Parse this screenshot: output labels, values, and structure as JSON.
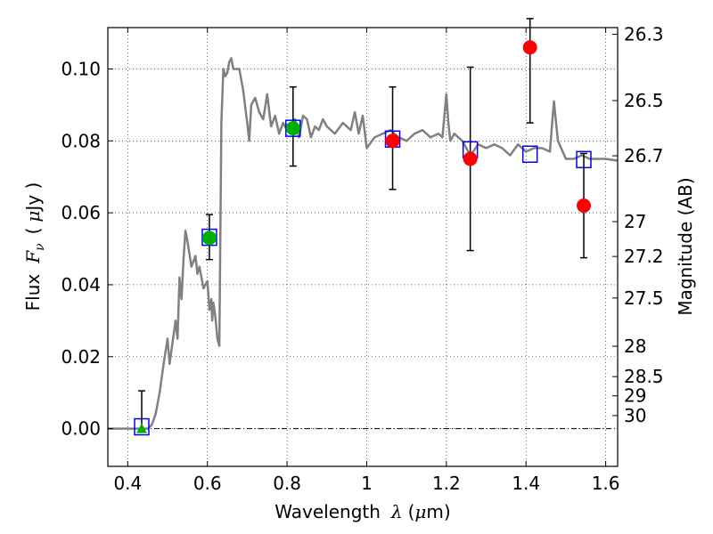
{
  "chart_data": {
    "type": "scatter",
    "xlabel_text": "Wavelength",
    "xlabel_symbol": "λ",
    "xlabel_unit_open": "(",
    "xlabel_unit_mu": "μ",
    "xlabel_unit_rest": "m)",
    "ylabel_text": "Flux",
    "ylabel_symbol": "F",
    "ylabel_sub": "ν",
    "ylabel_unit_open": "(",
    "ylabel_unit_mu": "μ",
    "ylabel_unit_rest": "Jy )",
    "y2label": "Magnitude (AB)",
    "xlim": [
      0.35,
      1.63
    ],
    "ylim": [
      -0.0105,
      0.1115
    ],
    "x_ticks": [
      0.4,
      0.6,
      0.8,
      1.0,
      1.2,
      1.4,
      1.6
    ],
    "x_tick_labels": [
      "0.4",
      "0.6",
      "0.8",
      "1",
      "1.2",
      "1.4",
      "1.6"
    ],
    "y_ticks": [
      0.0,
      0.02,
      0.04,
      0.06,
      0.08,
      0.1
    ],
    "y_tick_labels": [
      "0.00",
      "0.02",
      "0.04",
      "0.06",
      "0.08",
      "0.10"
    ],
    "mag_ticks": [
      "26.3",
      "26.5",
      "26.7",
      "27",
      "27.2",
      "27.5",
      "28",
      "28.5",
      "29",
      "30"
    ],
    "grid": true,
    "colors": {
      "sed": "#808080",
      "model": "#0000ff",
      "red": "#ff0000",
      "green": "#00b000",
      "errorbar": "#000000"
    },
    "sed_spectrum": {
      "x": [
        0.35,
        0.4,
        0.45,
        0.46,
        0.47,
        0.48,
        0.49,
        0.5,
        0.505,
        0.51,
        0.52,
        0.525,
        0.53,
        0.535,
        0.54,
        0.545,
        0.55,
        0.56,
        0.57,
        0.575,
        0.58,
        0.59,
        0.6,
        0.605,
        0.61,
        0.612,
        0.615,
        0.62,
        0.625,
        0.63,
        0.635,
        0.64,
        0.645,
        0.65,
        0.655,
        0.66,
        0.665,
        0.67,
        0.68,
        0.69,
        0.7,
        0.705,
        0.71,
        0.72,
        0.73,
        0.74,
        0.75,
        0.76,
        0.77,
        0.78,
        0.79,
        0.8,
        0.81,
        0.82,
        0.83,
        0.84,
        0.85,
        0.86,
        0.87,
        0.88,
        0.89,
        0.9,
        0.92,
        0.94,
        0.96,
        0.97,
        0.98,
        0.99,
        1.0,
        1.02,
        1.04,
        1.06,
        1.08,
        1.1,
        1.12,
        1.14,
        1.16,
        1.18,
        1.19,
        1.2,
        1.205,
        1.21,
        1.22,
        1.24,
        1.26,
        1.28,
        1.3,
        1.32,
        1.34,
        1.36,
        1.38,
        1.4,
        1.42,
        1.44,
        1.46,
        1.47,
        1.48,
        1.5,
        1.52,
        1.54,
        1.56,
        1.58,
        1.6,
        1.63
      ],
      "y": [
        0.0,
        0.0,
        0.0,
        0.001,
        0.004,
        0.01,
        0.018,
        0.025,
        0.018,
        0.022,
        0.03,
        0.025,
        0.042,
        0.036,
        0.047,
        0.055,
        0.052,
        0.045,
        0.048,
        0.043,
        0.045,
        0.039,
        0.041,
        0.033,
        0.036,
        0.03,
        0.035,
        0.031,
        0.025,
        0.023,
        0.085,
        0.1,
        0.098,
        0.099,
        0.102,
        0.103,
        0.1,
        0.1,
        0.1,
        0.094,
        0.085,
        0.08,
        0.09,
        0.092,
        0.088,
        0.086,
        0.093,
        0.084,
        0.087,
        0.082,
        0.085,
        0.083,
        0.084,
        0.086,
        0.081,
        0.087,
        0.086,
        0.081,
        0.084,
        0.083,
        0.086,
        0.084,
        0.082,
        0.085,
        0.083,
        0.088,
        0.082,
        0.087,
        0.078,
        0.081,
        0.082,
        0.083,
        0.081,
        0.08,
        0.082,
        0.083,
        0.081,
        0.082,
        0.081,
        0.093,
        0.085,
        0.08,
        0.082,
        0.08,
        0.076,
        0.079,
        0.078,
        0.079,
        0.078,
        0.076,
        0.079,
        0.077,
        0.078,
        0.078,
        0.077,
        0.091,
        0.08,
        0.075,
        0.075,
        0.076,
        0.075,
        0.075,
        0.075,
        0.0745
      ]
    },
    "model_points": {
      "x": [
        0.435,
        0.605,
        0.815,
        1.065,
        1.26,
        1.41,
        1.545
      ],
      "y": [
        0.0005,
        0.0532,
        0.0835,
        0.0805,
        0.0775,
        0.0763,
        0.0748
      ]
    },
    "observed_points": [
      {
        "x": 0.435,
        "y": 0.0,
        "err_low": 0.0,
        "err_high": 0.0105,
        "color": "green",
        "shape": "triangle"
      },
      {
        "x": 0.605,
        "y": 0.053,
        "err_low": 0.006,
        "err_high": 0.0065,
        "color": "green",
        "shape": "circle"
      },
      {
        "x": 0.815,
        "y": 0.0835,
        "err_low": 0.0105,
        "err_high": 0.0115,
        "color": "green",
        "shape": "circle"
      },
      {
        "x": 1.065,
        "y": 0.08,
        "err_low": 0.0135,
        "err_high": 0.015,
        "color": "red",
        "shape": "circle"
      },
      {
        "x": 1.26,
        "y": 0.075,
        "err_low": 0.0255,
        "err_high": 0.0255,
        "color": "red",
        "shape": "circle"
      },
      {
        "x": 1.41,
        "y": 0.106,
        "err_low": 0.021,
        "err_high": 0.008,
        "color": "red",
        "shape": "circle"
      },
      {
        "x": 1.545,
        "y": 0.062,
        "err_low": 0.0145,
        "err_high": 0.0145,
        "color": "red",
        "shape": "circle"
      }
    ]
  }
}
